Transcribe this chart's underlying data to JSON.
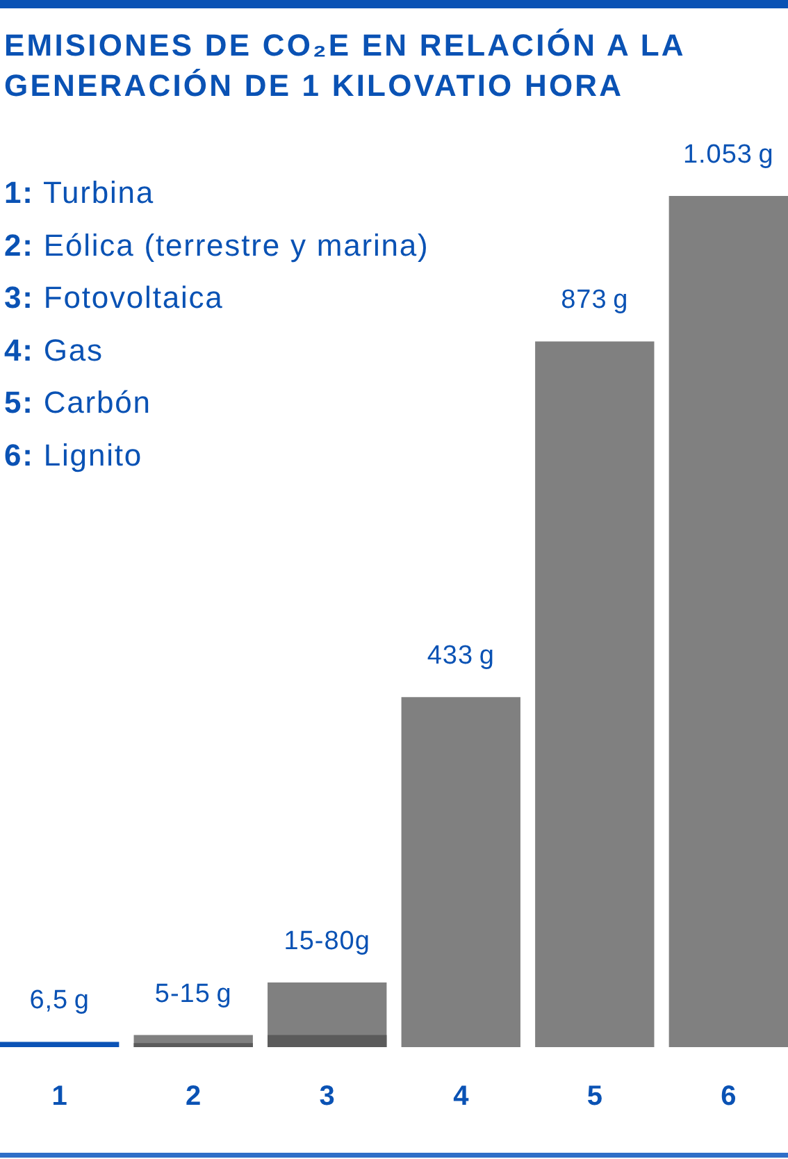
{
  "chart_data": {
    "type": "bar",
    "title": "EMISIONES DE CO₂E EN RELACIÓN A LA GENERACIÓN DE 1 KILOVATIO HORA",
    "categories": [
      "1",
      "2",
      "3",
      "4",
      "5",
      "6"
    ],
    "series": [
      {
        "values": [
          null,
          15,
          80,
          433,
          873,
          1053
        ],
        "color": "#808080",
        "value_labels": [
          null,
          "5-15 g",
          "15-80g",
          "433 g",
          "873 g",
          "1.053 g"
        ]
      },
      {
        "values": [
          6.5,
          5,
          15,
          null,
          null,
          null
        ],
        "colors": [
          "#0b53b6",
          "#5b5b5b",
          "#5b5b5b",
          null,
          null,
          null
        ],
        "value_labels": [
          "6,5 g",
          null,
          null,
          null,
          null,
          null
        ]
      }
    ],
    "annotations": [
      "1: Turbina",
      "2: Eólica (terrestre y marina)",
      "3: Fotovoltaica",
      "4: Gas",
      "5: Carbón",
      "6: Lignito"
    ]
  }
}
